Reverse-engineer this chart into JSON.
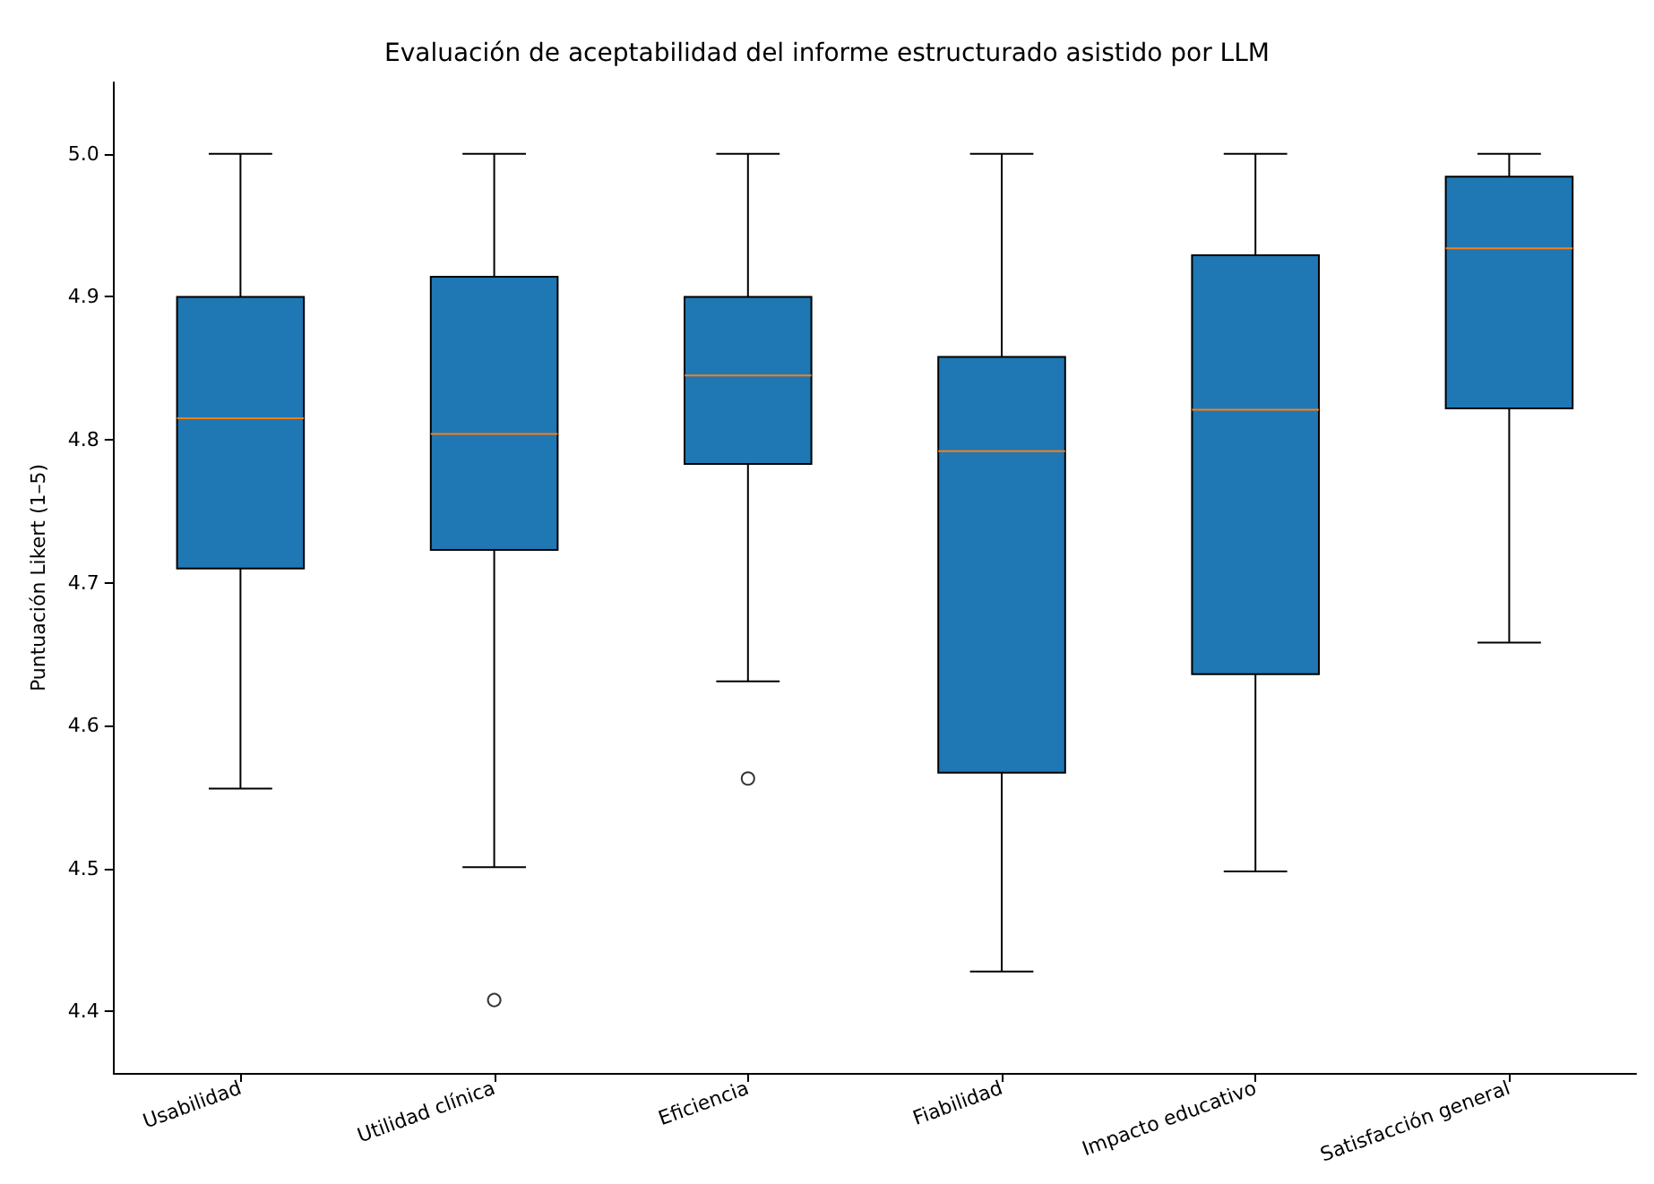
{
  "chart_data": {
    "type": "box",
    "title": "Evaluación de aceptabilidad del informe estructurado asistido por LLM",
    "ylabel": "Puntuación Likert (1–5)",
    "categories": [
      "Usabilidad",
      "Utilidad clínica",
      "Eficiencia",
      "Fiabilidad",
      "Impacto educativo",
      "Satisfacción general"
    ],
    "series": [
      {
        "color": "#1f77b4",
        "boxes": [
          {
            "low": 4.556,
            "q1": 4.71,
            "median": 4.815,
            "q3": 4.9,
            "high": 5.0
          },
          {
            "low": 4.501,
            "q1": 4.723,
            "median": 4.804,
            "q3": 4.914,
            "high": 5.0,
            "outliers": [
              4.408
            ]
          },
          {
            "low": 4.631,
            "q1": 4.783,
            "median": 4.845,
            "q3": 4.9,
            "high": 5.0,
            "outliers": [
              4.563
            ]
          },
          {
            "low": 4.428,
            "q1": 4.567,
            "median": 4.792,
            "q3": 4.858,
            "high": 5.0
          },
          {
            "low": 4.498,
            "q1": 4.636,
            "median": 4.821,
            "q3": 4.929,
            "high": 5.0
          },
          {
            "low": 4.658,
            "q1": 4.822,
            "median": 4.934,
            "q3": 4.984,
            "high": 5.0
          }
        ]
      }
    ],
    "ylim": [
      4.357,
      5.05
    ],
    "yticks": [
      {
        "value": 4.4,
        "label": "4.4"
      },
      {
        "value": 4.5,
        "label": "4.5"
      },
      {
        "value": 4.6,
        "label": "4.6"
      },
      {
        "value": 4.7,
        "label": "4.7"
      },
      {
        "value": 4.8,
        "label": "4.8"
      },
      {
        "value": 4.9,
        "label": "4.9"
      },
      {
        "value": 5.0,
        "label": "5.0"
      }
    ],
    "grid": false
  }
}
